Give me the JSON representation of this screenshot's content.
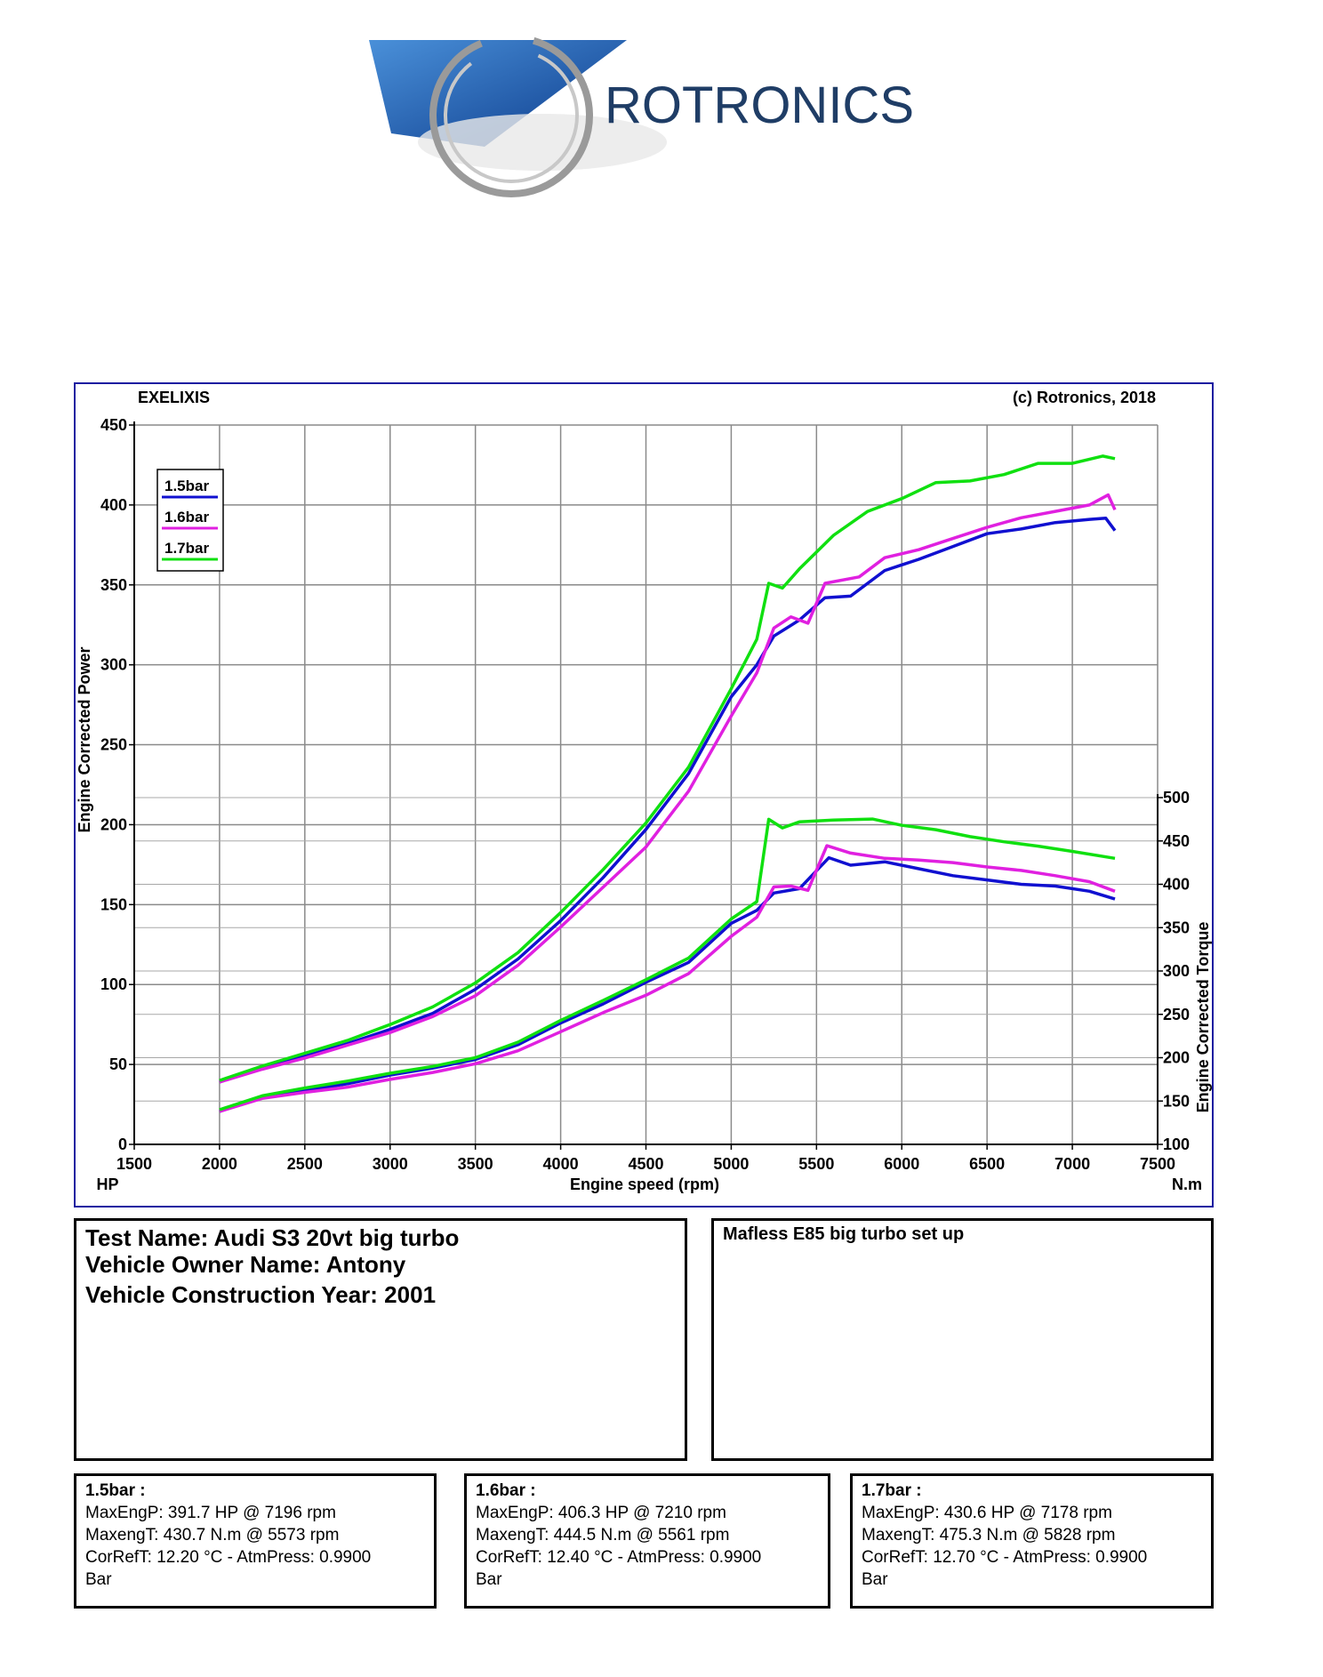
{
  "logo": {
    "text": "ROTRONICS"
  },
  "chart_header": {
    "left": "EXELIXIS",
    "right": "(c) Rotronics, 2018"
  },
  "chart_data": {
    "type": "line",
    "xlabel": "Engine speed (rpm)",
    "x_unit": "HP",
    "x2_unit": "N.m",
    "ylabel": "Engine Corrected Power",
    "y2label": "Engine Corrected Torque",
    "xlim": [
      1500,
      7500
    ],
    "ylim": [
      0,
      450
    ],
    "y2lim": [
      100,
      500
    ],
    "xticks": [
      "1500",
      "2000",
      "2500",
      "3000",
      "3500",
      "4000",
      "4500",
      "5000",
      "5500",
      "6000",
      "6500",
      "7000",
      "7500"
    ],
    "yticks": [
      "0",
      "50",
      "100",
      "150",
      "200",
      "250",
      "300",
      "350",
      "400",
      "450"
    ],
    "y2ticks": [
      "100",
      "150",
      "200",
      "250",
      "300",
      "350",
      "400",
      "450",
      "500"
    ],
    "grid": true,
    "legend_position": "top-left",
    "series": [
      {
        "name": "1.5bar",
        "color": "#1010d0",
        "axis": "power",
        "x": [
          2000,
          2250,
          2500,
          2750,
          3000,
          3250,
          3500,
          3750,
          4000,
          4250,
          4500,
          4750,
          5000,
          5150,
          5250,
          5400,
          5550,
          5700,
          5900,
          6100,
          6300,
          6500,
          6700,
          6900,
          7100,
          7196,
          7250
        ],
        "y": [
          39,
          48,
          55,
          63,
          72,
          82,
          97,
          116,
          140,
          167,
          197,
          232,
          280,
          300,
          318,
          328,
          342,
          343,
          359,
          366,
          374,
          382,
          385,
          389,
          391,
          391.7,
          384
        ]
      },
      {
        "name": "1.6bar",
        "color": "#e020e0",
        "axis": "power",
        "x": [
          2000,
          2250,
          2500,
          2750,
          3000,
          3250,
          3500,
          3750,
          4000,
          4250,
          4500,
          4750,
          5000,
          5150,
          5250,
          5350,
          5450,
          5550,
          5750,
          5900,
          6100,
          6300,
          6500,
          6700,
          6900,
          7100,
          7210,
          7250
        ],
        "y": [
          39,
          47,
          54,
          62,
          70,
          80,
          93,
          112,
          136,
          161,
          186,
          221,
          268,
          295,
          323,
          330,
          326,
          351,
          355,
          367,
          372,
          379,
          386,
          392,
          396,
          400,
          406.3,
          397
        ]
      },
      {
        "name": "1.7bar",
        "color": "#10e010",
        "axis": "power",
        "x": [
          2000,
          2250,
          2500,
          2750,
          3000,
          3250,
          3500,
          3750,
          4000,
          4250,
          4500,
          4750,
          5000,
          5150,
          5220,
          5300,
          5400,
          5600,
          5800,
          6000,
          6200,
          6400,
          6600,
          6800,
          7000,
          7178,
          7250
        ],
        "y": [
          40,
          49,
          57,
          65,
          75,
          86,
          101,
          120,
          145,
          172,
          201,
          236,
          285,
          316,
          351,
          348,
          360,
          381,
          396,
          404,
          414,
          415,
          419,
          426,
          426,
          430.6,
          429
        ]
      },
      {
        "name": "1.5bar",
        "color": "#1010d0",
        "axis": "torque",
        "x": [
          2000,
          2250,
          2500,
          2750,
          3000,
          3250,
          3500,
          3750,
          4000,
          4250,
          4500,
          4750,
          5000,
          5150,
          5250,
          5400,
          5573,
          5700,
          5900,
          6100,
          6300,
          6500,
          6700,
          6900,
          7100,
          7250
        ],
        "y": [
          138,
          155,
          162,
          170,
          180,
          188,
          198,
          215,
          240,
          262,
          287,
          310,
          355,
          370,
          390,
          395,
          430.7,
          422,
          426,
          418,
          410,
          405,
          400,
          398,
          392,
          383
        ]
      },
      {
        "name": "1.6bar",
        "color": "#e020e0",
        "axis": "torque",
        "x": [
          2000,
          2250,
          2500,
          2750,
          3000,
          3250,
          3500,
          3750,
          4000,
          4250,
          4500,
          4750,
          5000,
          5150,
          5250,
          5350,
          5450,
          5561,
          5700,
          5900,
          6100,
          6300,
          6500,
          6700,
          6900,
          7100,
          7250
        ],
        "y": [
          138,
          153,
          160,
          166,
          175,
          183,
          193,
          208,
          230,
          252,
          272,
          297,
          340,
          362,
          397,
          398,
          393,
          444.5,
          436,
          430,
          428,
          425,
          420,
          416,
          410,
          403,
          392
        ]
      },
      {
        "name": "1.7bar",
        "color": "#10e010",
        "axis": "torque",
        "x": [
          2000,
          2250,
          2500,
          2750,
          3000,
          3250,
          3500,
          3750,
          4000,
          4250,
          4500,
          4750,
          5000,
          5150,
          5220,
          5300,
          5400,
          5600,
          5828,
          6000,
          6200,
          6400,
          6600,
          6800,
          7000,
          7250
        ],
        "y": [
          140,
          156,
          165,
          173,
          182,
          190,
          200,
          218,
          243,
          266,
          290,
          315,
          360,
          380,
          475,
          465,
          472,
          474,
          475.3,
          468,
          463,
          455,
          449,
          444,
          438,
          430
        ]
      }
    ]
  },
  "test_info": {
    "name": "Test Name: Audi S3 20vt big turbo",
    "owner": "Vehicle Owner Name: Antony",
    "year": "Vehicle Construction Year: 2001"
  },
  "comment": "Mafless E85 big turbo set up",
  "results": [
    {
      "title": "1.5bar  :",
      "power": "MaxEngP: 391.7 HP @ 7196 rpm",
      "torque": "MaxengT: 430.7 N.m @ 5573 rpm",
      "ref": "CorRefT: 12.20 °C - AtmPress: 0.9900",
      "unit": "Bar"
    },
    {
      "title": "1.6bar :",
      "power": "MaxEngP: 406.3 HP @ 7210 rpm",
      "torque": "MaxengT: 444.5 N.m @ 5561 rpm",
      "ref": "CorRefT: 12.40 °C - AtmPress: 0.9900",
      "unit": "Bar"
    },
    {
      "title": "1.7bar :",
      "power": "MaxEngP: 430.6 HP @ 7178 rpm",
      "torque": "MaxengT: 475.3 N.m @ 5828 rpm",
      "ref": "CorRefT: 12.70 °C - AtmPress: 0.9900",
      "unit": "Bar"
    }
  ]
}
